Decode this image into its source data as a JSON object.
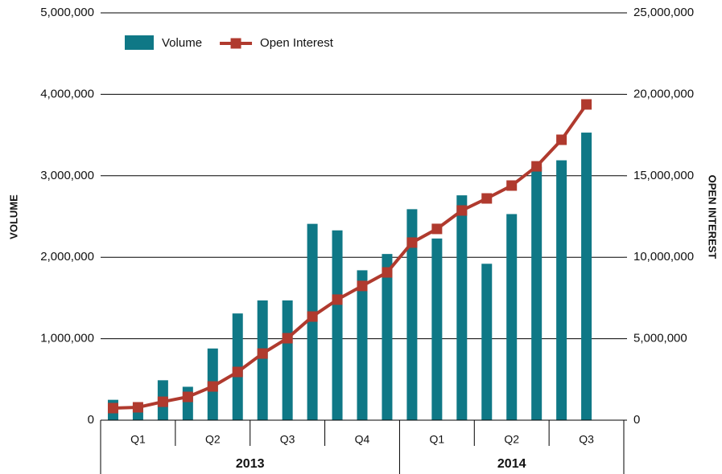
{
  "chart_data": {
    "type": "bar-line",
    "ylabel": "VOLUME",
    "y2label": "OPEN INTEREST",
    "categories": [
      null,
      null,
      null,
      null,
      null,
      null,
      null,
      null,
      null,
      null,
      null,
      null,
      null,
      null,
      null,
      null,
      null,
      null,
      null,
      null,
      null
    ],
    "groups": [
      {
        "label": "2013",
        "quarters": [
          "Q1",
          "Q2",
          "Q3",
          "Q4"
        ]
      },
      {
        "label": "2014",
        "quarters": [
          "Q1",
          "Q2",
          "Q3"
        ]
      }
    ],
    "series": [
      {
        "name": "Volume",
        "type": "bar",
        "color": "#0f7886",
        "values": [
          250000,
          200000,
          490000,
          410000,
          880000,
          1310000,
          1470000,
          1470000,
          2410000,
          2330000,
          1840000,
          2040000,
          2590000,
          2230000,
          2760000,
          1920000,
          2530000,
          3110000,
          3190000,
          3530000,
          null
        ]
      },
      {
        "name": "Open Interest",
        "type": "line",
        "axis": "y2",
        "color": "#b03a2e",
        "values": [
          740000,
          790000,
          1130000,
          1430000,
          2070000,
          2960000,
          4090000,
          5030000,
          6360000,
          7400000,
          8240000,
          9070000,
          10900000,
          11740000,
          12870000,
          13610000,
          14400000,
          15580000,
          17210000,
          19380000,
          null
        ]
      }
    ],
    "ylim": [
      0,
      5000000
    ],
    "yticks": [
      0,
      {
        "value": 1000000,
        "label": "1,000,000"
      },
      {
        "value": 2000000,
        "label": "2,000,000"
      },
      {
        "value": 3000000,
        "label": "3,000,000"
      },
      {
        "value": 4000000,
        "label": "4,000,000"
      },
      {
        "value": 5000000,
        "label": "5,000,000"
      }
    ],
    "y2lim": [
      0,
      25000000
    ],
    "y2ticks": [
      0,
      {
        "value": 5000000,
        "label": "5,000,000"
      },
      {
        "value": 10000000,
        "label": "10,000,000"
      },
      {
        "value": 15000000,
        "label": "15,000,000"
      },
      {
        "value": 20000000,
        "label": "20,000,000"
      },
      {
        "value": 25000000,
        "label": "25,000,000"
      }
    ],
    "grid": true,
    "legend": "top-left"
  }
}
